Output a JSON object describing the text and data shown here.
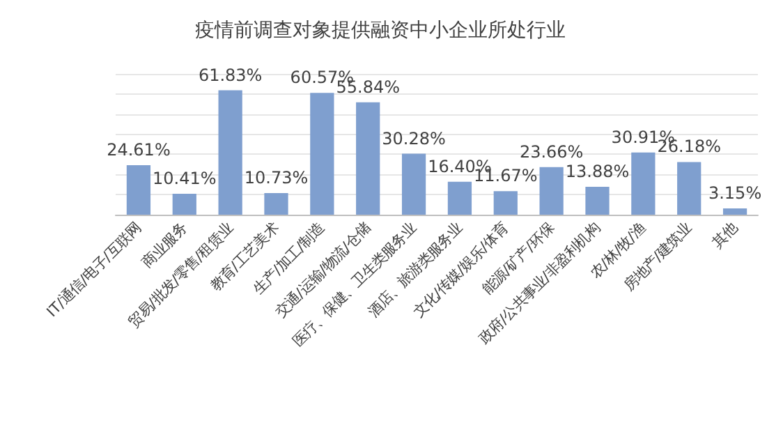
{
  "chart_data": {
    "type": "bar",
    "title": "疫情前调查对象提供融资中小企业所处行业",
    "categories": [
      "IT/通信/电子/互联网",
      "商业服务",
      "贸易/批发/零售/租赁业",
      "教育/工艺美术",
      "生产/加工/制造",
      "交通/运输/物流/仓储",
      "医疗、保健、卫生类服务业",
      "酒店、旅游类服务业",
      "文化/传媒/娱乐/体育",
      "能源/矿产/环保",
      "政府/公共事业/非盈利机构",
      "农/林/牧/渔",
      "房地产/建筑业",
      "其他"
    ],
    "values": [
      24.61,
      10.41,
      61.83,
      10.73,
      60.57,
      55.84,
      30.28,
      16.4,
      11.67,
      23.66,
      13.88,
      30.91,
      26.18,
      3.15
    ],
    "value_labels": [
      "24.61%",
      "10.41%",
      "61.83%",
      "10.73%",
      "60.57%",
      "55.84%",
      "30.28%",
      "16.40%",
      "11.67%",
      "23.66%",
      "13.88%",
      "30.91%",
      "26.18%",
      "3.15%"
    ],
    "color": "#7f9fcf",
    "ylim": [
      0,
      70
    ],
    "yticks": [
      0,
      10,
      20,
      30,
      40,
      50,
      60,
      70
    ],
    "grid": "y",
    "tick_labels": "x"
  }
}
